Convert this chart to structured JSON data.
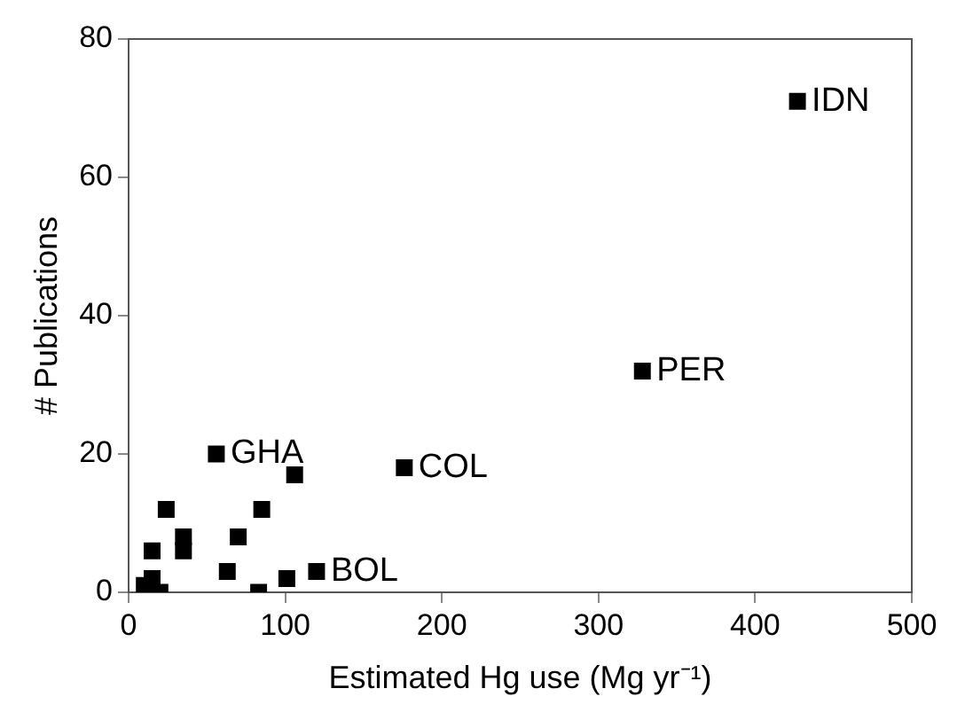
{
  "chart_data": {
    "type": "scatter",
    "xlabel": "Estimated Hg use (Mg yr⁻¹)",
    "ylabel": "# Publications",
    "x": [
      427,
      328,
      176,
      56,
      120,
      106,
      85,
      24,
      15,
      35,
      35,
      70,
      63,
      101,
      83,
      10,
      15,
      20
    ],
    "series": [
      {
        "color": "#000000",
        "values": [
          71,
          32,
          18,
          20,
          3,
          17,
          12,
          12,
          6,
          8,
          6,
          8,
          3,
          2,
          0,
          1,
          2,
          0
        ]
      }
    ],
    "annotations": [
      {
        "text": "IDN",
        "x": 427,
        "y": 71
      },
      {
        "text": "PER",
        "x": 328,
        "y": 32
      },
      {
        "text": "COL",
        "x": 176,
        "y": 18
      },
      {
        "text": "GHA",
        "x": 56,
        "y": 20
      },
      {
        "text": "BOL",
        "x": 120,
        "y": 3
      }
    ],
    "xlim": [
      0,
      500
    ],
    "xticks": [
      0,
      100,
      200,
      300,
      400,
      500
    ],
    "ylim": [
      0,
      80
    ],
    "yticks": [
      0,
      20,
      40,
      60,
      80
    ],
    "grid": false,
    "legend": false,
    "marker": "square"
  }
}
